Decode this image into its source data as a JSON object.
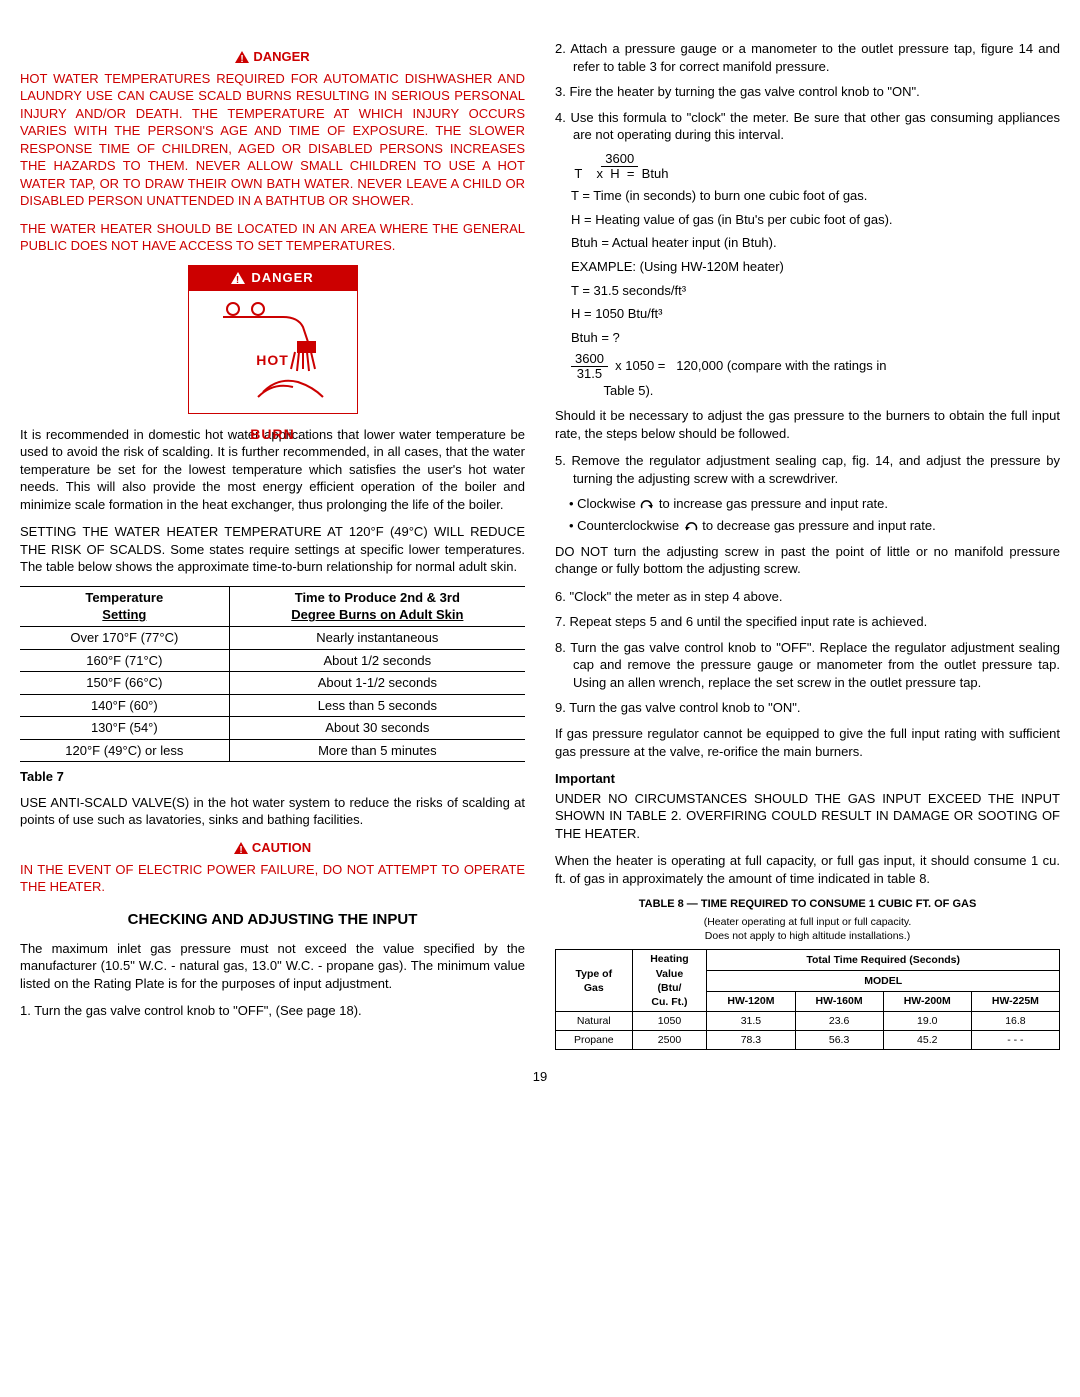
{
  "left": {
    "danger_word": "DANGER",
    "danger_para1": "HOT WATER TEMPERATURES REQUIRED FOR AUTOMATIC DISHWASHER AND LAUNDRY USE CAN CAUSE SCALD BURNS RESULTING IN SERIOUS PERSONAL INJURY AND/OR DEATH.  THE TEMPERATURE AT WHICH INJURY OCCURS VARIES WITH THE PERSON'S AGE AND TIME OF EXPOSURE.  THE SLOWER RESPONSE TIME OF CHILDREN, AGED OR DISABLED PERSONS INCREASES THE HAZARDS TO THEM.  NEVER ALLOW SMALL CHILDREN TO USE A HOT WATER TAP, OR TO DRAW THEIR OWN BATH WATER.  NEVER LEAVE A CHILD OR DISABLED PERSON UNATTENDED IN A BATHTUB OR SHOWER.",
    "danger_para2": "THE WATER HEATER SHOULD BE LOCATED IN  AN AREA WHERE THE GENERAL PUBLIC DOES NOT HAVE ACCESS TO SET TEMPERATURES.",
    "danger_box_label": "DANGER",
    "danger_hot": "HOT",
    "danger_burn": "BURN",
    "recommend_para": "It is recommended in domestic hot water applications that lower water temperature be used to avoid the risk of scalding.  It is further recommended, in all cases, that the water temperature be set for the lowest temperature which satisfies the user's hot water needs.  This will also provide the most energy efficient operation of the boiler and minimize scale formation in the heat exchanger, thus prolonging the life of the boiler.",
    "setting_para": "SETTING THE WATER HEATER TEMPERATURE AT 120°F (49°C) WILL REDUCE THE RISK OF SCALDS.  Some states require settings at specific lower temperatures. The table below shows the approximate time-to-burn relationship for normal adult skin.",
    "burn_table": {
      "col1_h1": "Temperature",
      "col1_h2": "Setting",
      "col2_h1": "Time to Produce 2nd & 3rd",
      "col2_h2": "Degree Burns on Adult Skin",
      "rows": [
        [
          "Over 170°F (77°C)",
          "Nearly instantaneous"
        ],
        [
          "160°F (71°C)",
          "About 1/2 seconds"
        ],
        [
          "150°F (66°C)",
          "About 1-1/2 seconds"
        ],
        [
          "140°F (60°)",
          "Less than 5 seconds"
        ],
        [
          "130°F (54°)",
          "About 30 seconds"
        ],
        [
          "120°F (49°C) or less",
          "More than 5 minutes"
        ]
      ]
    },
    "table7_label": "Table 7",
    "anti_scald": "USE ANTI-SCALD VALVE(S) in the hot water system to reduce the risks of scalding at points of use such as lavatories, sinks and bathing facilities.",
    "caution_word": "CAUTION",
    "caution_text": "IN THE EVENT OF ELECTRIC POWER FAILURE, DO NOT ATTEMPT TO OPERATE THE HEATER.",
    "section_title": "CHECKING AND ADJUSTING THE INPUT",
    "max_inlet": "The maximum inlet gas pressure must not exceed the value specified by the manufacturer (10.5\" W.C. - natural gas, 13.0\" W.C. - propane gas).  The minimum value listed on the Rating Plate is for the purposes of input adjustment.",
    "step1": "1. Turn the gas valve control knob to \"OFF\", (See page 18)."
  },
  "right": {
    "step2": "2. Attach a pressure gauge or a manometer to the outlet pressure tap, figure 14 and refer to table 3 for correct manifold pressure.",
    "step3": "3. Fire the heater by turning the gas valve control knob to \"ON\".",
    "step4": "4. Use this formula to \"clock\" the meter.  Be sure that other gas consuming appliances are not operating during this interval.",
    "f_3600": "3600",
    "f_line1": " T    x  H  =  Btuh",
    "f_T": "T   =   Time (in seconds) to burn one cubic foot of gas.",
    "f_H": "H   =   Heating value of gas (in Btu's per cubic foot of gas).",
    "f_Btuh": "Btuh = Actual heater input (in Btuh).",
    "f_example": "EXAMPLE: (Using HW-120M heater)",
    "f_Tval": "T   =   31.5 seconds/ft³",
    "f_Hval": "H   =   1050 Btu/ft³",
    "f_Bq": "Btuh  =  ?",
    "f_calc_top": "3600",
    "f_calc_bot": "31.5",
    "f_calc_rest": "  x 1050 =   120,000 (compare with the ratings in",
    "f_calc_rest2": "Table 5).",
    "should_para": "Should it be necessary to adjust the gas pressure to the burners to obtain the full input rate, the steps below should be followed.",
    "step5": "5. Remove the regulator adjustment sealing cap, fig. 14, and adjust the pressure by turning the adjusting screw with a screwdriver.",
    "bullet_cw": "Clockwise",
    "bullet_cw_rest": " to increase gas pressure and input rate.",
    "bullet_ccw": "Counterclockwise",
    "bullet_ccw_rest": "  to decrease gas pressure and input rate.",
    "donot": "DO NOT turn the adjusting screw in past the point of little or no manifold pressure change or fully bottom the adjusting screw.",
    "step6": "6. \"Clock\" the meter as in step 4 above.",
    "step7": "7. Repeat steps 5 and 6 until the specified input rate is achieved.",
    "step8": "8. Turn the gas valve control knob to \"OFF\".  Replace the regulator adjustment sealing cap and remove the pressure gauge or manometer from the outlet pressure tap.  Using an allen wrench, replace the set screw in the outlet pressure tap.",
    "step9": "9. Turn the gas valve control knob to \"ON\".",
    "reorifice": "If gas pressure regulator cannot be equipped to give the full input rating with sufficient gas pressure at the valve, re-orifice the main burners.",
    "important_label": "Important",
    "important_text": "UNDER NO CIRCUMSTANCES SHOULD THE GAS INPUT EXCEED THE INPUT SHOWN IN TABLE 2.  OVERFIRING COULD RESULT IN DAMAGE OR SOOTING OF THE HEATER.",
    "when_para": "When the heater is operating at full capacity, or full gas input, it should consume 1 cu. ft. of gas in approximately the amount of time indicated in table 8.",
    "table8_title": "TABLE 8 — TIME REQUIRED TO CONSUME 1 CUBIC FT. OF GAS",
    "table8_note1": "(Heater operating at full input or full capacity.",
    "table8_note2": "Does not apply to high altitude installations.)",
    "gas_table": {
      "h_type1": "Type of",
      "h_type2": "Gas",
      "h_heat1": "Heating",
      "h_heat2": "Value",
      "h_heat3": "(Btu/",
      "h_heat4": "Cu. Ft.)",
      "h_total": "Total Time Required (Seconds)",
      "h_model": "MODEL",
      "models": [
        "HW-120M",
        "HW-160M",
        "HW-200M",
        "HW-225M"
      ],
      "rows": [
        [
          "Natural",
          "1050",
          "31.5",
          "23.6",
          "19.0",
          "16.8"
        ],
        [
          "Propane",
          "2500",
          "78.3",
          "56.3",
          "45.2",
          "- - -"
        ]
      ]
    }
  },
  "page_num": "19"
}
